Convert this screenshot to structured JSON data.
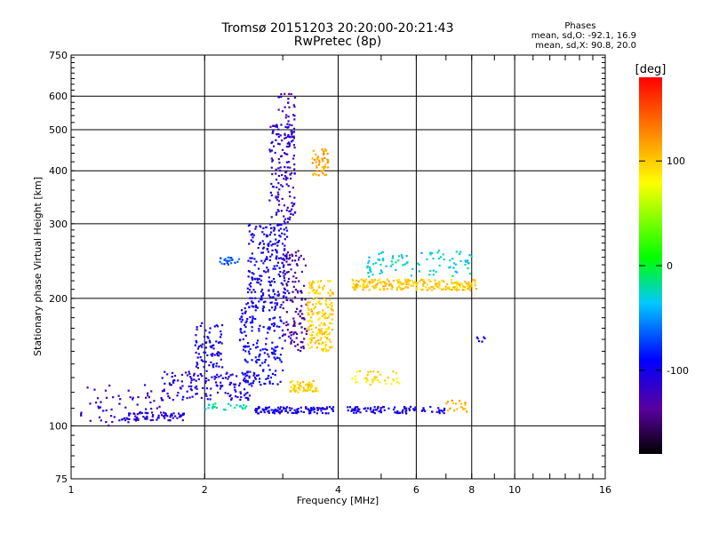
{
  "header": {
    "title": "Tromsø 20151203 20:20:00-20:21:43",
    "subtitle": "RwPretec (8p)"
  },
  "phases_box": {
    "title": "Phases",
    "line_o": "mean, sd,O: -92.1, 16.9",
    "line_x": "mean, sd,X:  90.8, 20.0"
  },
  "colorbar": {
    "label": "[deg]",
    "ticks": [
      "100",
      "0",
      "-100"
    ],
    "tick_values": [
      100,
      0,
      -100
    ],
    "range": [
      -180,
      180
    ]
  },
  "chart_data": {
    "type": "scatter",
    "title": "Tromsø 20151203 20:20:00-20:21:43",
    "subtitle": "RwPretec (8p)",
    "xlabel": "Frequency [MHz]",
    "ylabel": "Stationary phase Virtual Height [km]",
    "xscale": "log",
    "yscale": "log",
    "xlim": [
      1,
      16
    ],
    "ylim": [
      75,
      750
    ],
    "xticks": [
      1,
      2,
      4,
      6,
      8,
      10,
      16
    ],
    "xtick_labels": [
      "1",
      "2",
      "4",
      "6",
      "8",
      "10",
      "16"
    ],
    "yticks": [
      75,
      100,
      200,
      300,
      400,
      500,
      600,
      750
    ],
    "ytick_labels": [
      "75",
      "100",
      "200",
      "300",
      "400",
      "500",
      "600",
      "750"
    ],
    "grid": true,
    "color_by": "phase (deg)",
    "clusters": [
      {
        "x": [
          1.05,
          1.6
        ],
        "y": [
          100,
          125
        ],
        "phase": -115,
        "n": 60
      },
      {
        "x": [
          1.3,
          1.8
        ],
        "y": [
          103,
          108
        ],
        "phase": -108,
        "n": 70
      },
      {
        "x": [
          1.6,
          2.6
        ],
        "y": [
          115,
          135
        ],
        "phase": -108,
        "n": 140
      },
      {
        "x": [
          1.9,
          2.2
        ],
        "y": [
          130,
          175
        ],
        "phase": -102,
        "n": 80
      },
      {
        "x": [
          2.4,
          3.0
        ],
        "y": [
          125,
          200
        ],
        "phase": -95,
        "n": 200
      },
      {
        "x": [
          2.5,
          3.1
        ],
        "y": [
          200,
          300
        ],
        "phase": -100,
        "n": 200
      },
      {
        "x": [
          2.8,
          3.2
        ],
        "y": [
          300,
          520
        ],
        "phase": -115,
        "n": 160
      },
      {
        "x": [
          2.9,
          3.2
        ],
        "y": [
          520,
          610
        ],
        "phase": -125,
        "n": 25
      },
      {
        "x": [
          3.0,
          3.4
        ],
        "y": [
          150,
          260
        ],
        "phase": -135,
        "n": 120
      },
      {
        "x": [
          3.4,
          3.9
        ],
        "y": [
          150,
          220
        ],
        "phase": 98,
        "n": 180
      },
      {
        "x": [
          3.1,
          3.6
        ],
        "y": [
          120,
          128
        ],
        "phase": 100,
        "n": 60
      },
      {
        "x": [
          3.5,
          3.8
        ],
        "y": [
          390,
          450
        ],
        "phase": 115,
        "n": 50
      },
      {
        "x": [
          2.6,
          3.9
        ],
        "y": [
          107,
          111
        ],
        "phase": -100,
        "n": 110
      },
      {
        "x": [
          2.0,
          2.5
        ],
        "y": [
          109,
          113
        ],
        "phase": -20,
        "n": 25
      },
      {
        "x": [
          4.3,
          8.2
        ],
        "y": [
          209,
          222
        ],
        "phase": 100,
        "n": 220
      },
      {
        "x": [
          4.6,
          8.0
        ],
        "y": [
          225,
          260
        ],
        "phase": -30,
        "n": 90
      },
      {
        "x": [
          4.2,
          7.0
        ],
        "y": [
          107,
          111
        ],
        "phase": -100,
        "n": 90
      },
      {
        "x": [
          4.3,
          5.5
        ],
        "y": [
          125,
          135
        ],
        "phase": 90,
        "n": 40
      },
      {
        "x": [
          2.1,
          2.4
        ],
        "y": [
          240,
          250
        ],
        "phase": -70,
        "n": 20
      },
      {
        "x": [
          7.0,
          7.8
        ],
        "y": [
          107,
          115
        ],
        "phase": 110,
        "n": 20
      },
      {
        "x": [
          8.2,
          8.6
        ],
        "y": [
          158,
          162
        ],
        "phase": -100,
        "n": 6
      }
    ]
  }
}
